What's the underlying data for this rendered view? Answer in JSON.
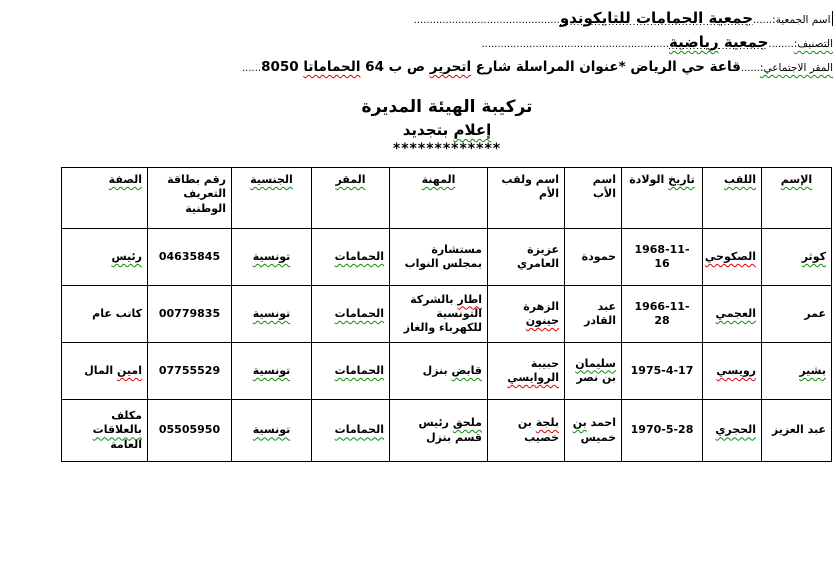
{
  "colors": {
    "page_bg": "#ffffff",
    "text": "#000000",
    "table_border": "#000000",
    "spell_check_red": "#e00000",
    "spell_check_green": "#0a8f08"
  },
  "header_lines": [
    {
      "name": "association-name-line",
      "cursor": true,
      "segments": [
        {
          "t": "اسم الجمعية:",
          "cls": "lbl"
        },
        {
          "t": "......",
          "cls": "dots"
        },
        {
          "t": "جمعية الحمامات للتايكوندو",
          "cls": "val on-dots"
        },
        {
          "t": "..............................................",
          "cls": "dots"
        }
      ]
    },
    {
      "name": "classification-line",
      "segments": [
        {
          "t": "التصنيف:",
          "cls": "lbl",
          "w": "green"
        },
        {
          "t": "........",
          "cls": "dots"
        },
        {
          "t": "جمعية ",
          "cls": "val on-dots"
        },
        {
          "t": "رياضية",
          "cls": "val on-dots",
          "w": "green"
        },
        {
          "t": "...........................................................",
          "cls": "dots"
        }
      ]
    },
    {
      "name": "headquarters-line",
      "segments": [
        {
          "t": "المقر الاجتماعي:",
          "cls": "lbl",
          "w": "green"
        },
        {
          "t": "......",
          "cls": "dots"
        },
        {
          "t": "قاعة حي الرياض  *عنوان المراسلة شارع ",
          "cls": "val3"
        },
        {
          "t": "اتحرير",
          "cls": "val3",
          "w": "red"
        },
        {
          "t": " ص ب 64 ",
          "cls": "val3"
        },
        {
          "t": "الحماماتا",
          "cls": "val3",
          "w": "red"
        },
        {
          "t": " 8050",
          "cls": "val3"
        },
        {
          "t": "......",
          "cls": "dots"
        }
      ]
    }
  ],
  "title": {
    "line1": "تركيبة الهيئة المديرة",
    "line2_segments": [
      {
        "t": "إعلام",
        "w": "green"
      },
      {
        "t": " بتجديد"
      }
    ],
    "stars": "*************"
  },
  "table": {
    "columns": [
      {
        "key": "name",
        "label": [
          {
            "t": "الإسم",
            "w": "green"
          }
        ]
      },
      {
        "key": "surname",
        "label": [
          {
            "t": "اللقب",
            "w": "green"
          }
        ]
      },
      {
        "key": "birth_date",
        "label": [
          {
            "t": "تاريخ",
            "w": "green"
          },
          {
            "t": " الولادة"
          }
        ]
      },
      {
        "key": "father_name",
        "label": [
          {
            "t": "اسم الأب"
          }
        ]
      },
      {
        "key": "mother_name",
        "label": [
          {
            "t": "اسم ولقب الأم"
          }
        ]
      },
      {
        "key": "profession",
        "label": [
          {
            "t": "المهنة",
            "w": "green"
          }
        ]
      },
      {
        "key": "residence",
        "label": [
          {
            "t": "المقر",
            "w": "green"
          }
        ]
      },
      {
        "key": "nationality",
        "label": [
          {
            "t": "الجنسية",
            "w": "green"
          }
        ]
      },
      {
        "key": "id_number",
        "label": [
          {
            "t": "رقم بطاقة التعريف الوطنية"
          }
        ]
      },
      {
        "key": "role",
        "label": [
          {
            "t": "الصفة",
            "w": "green"
          }
        ]
      }
    ],
    "rows": [
      {
        "name": [
          {
            "t": "كوثر",
            "w": "green"
          }
        ],
        "surname": [
          {
            "t": "الصكوحي",
            "w": "red"
          }
        ],
        "birth_date": [
          {
            "t": "1968-11-16"
          }
        ],
        "father_name": [
          {
            "t": "حمودة"
          }
        ],
        "mother_name": [
          {
            "t": "عزيزة العامري"
          }
        ],
        "profession": [
          {
            "t": "مستشارة بمجلس النواب"
          }
        ],
        "residence": [
          {
            "t": "الحمامات",
            "w": "green"
          }
        ],
        "nationality": [
          {
            "t": "تونسية",
            "w": "green"
          }
        ],
        "id_number": [
          {
            "t": "04635845"
          }
        ],
        "role": [
          {
            "t": "رئيس",
            "w": "green"
          }
        ]
      },
      {
        "name": [
          {
            "t": "عمر"
          }
        ],
        "surname": [
          {
            "t": "العجمي",
            "w": "green"
          }
        ],
        "birth_date": [
          {
            "t": "1966-11-28"
          }
        ],
        "father_name": [
          {
            "t": "عبد القادر"
          }
        ],
        "mother_name": [
          {
            "t": "الزهرة "
          },
          {
            "t": "جينون",
            "w": "red"
          }
        ],
        "profession": [
          {
            "t": "اطار",
            "w": "red"
          },
          {
            "t": " بالشركة التونسية للكهرباء والغاز"
          }
        ],
        "residence": [
          {
            "t": "الحمامات",
            "w": "green"
          }
        ],
        "nationality": [
          {
            "t": "تونسية",
            "w": "green"
          }
        ],
        "id_number": [
          {
            "t": "00779835"
          }
        ],
        "role": [
          {
            "t": "كاتب عام"
          }
        ]
      },
      {
        "name": [
          {
            "t": "بشير",
            "w": "green"
          }
        ],
        "surname": [
          {
            "t": "رويسي",
            "w": "red"
          }
        ],
        "birth_date": [
          {
            "t": "1975-4-17"
          }
        ],
        "father_name": [
          {
            "t": "سليمان",
            "w": "green"
          },
          {
            "t": " بن نصر"
          }
        ],
        "mother_name": [
          {
            "t": "حبيبة "
          },
          {
            "t": "الروايسي",
            "w": "red"
          }
        ],
        "profession": [
          {
            "t": "قابض",
            "w": "green"
          },
          {
            "t": " بنزل"
          }
        ],
        "residence": [
          {
            "t": "الحمامات",
            "w": "green"
          }
        ],
        "nationality": [
          {
            "t": "تونسية",
            "w": "green"
          }
        ],
        "id_number": [
          {
            "t": "07755529"
          }
        ],
        "role": [
          {
            "t": "امين",
            "w": "red"
          },
          {
            "t": " المال"
          }
        ]
      },
      {
        "name": [
          {
            "t": "عبد العزيز"
          }
        ],
        "surname": [
          {
            "t": "الحجري",
            "w": "green"
          }
        ],
        "birth_date": [
          {
            "t": "1970-5-28"
          }
        ],
        "father_name": [
          {
            "t": "احمد "
          },
          {
            "t": "بن",
            "w": "green"
          },
          {
            "t": " خميس"
          }
        ],
        "mother_name": [
          {
            "t": "بلجة",
            "w": "red"
          },
          {
            "t": " بن خصيب"
          }
        ],
        "profession": [
          {
            "t": "ملحق",
            "w": "green"
          },
          {
            "t": " رئيس قسم بنزل"
          }
        ],
        "residence": [
          {
            "t": "الحمامات",
            "w": "green"
          }
        ],
        "nationality": [
          {
            "t": "تونسية",
            "w": "green"
          }
        ],
        "id_number": [
          {
            "t": "05505950"
          }
        ],
        "role": [
          {
            "t": "مكلف "
          },
          {
            "t": "بالعلاقات",
            "w": "green"
          },
          {
            "t": " العامة"
          }
        ]
      }
    ]
  }
}
